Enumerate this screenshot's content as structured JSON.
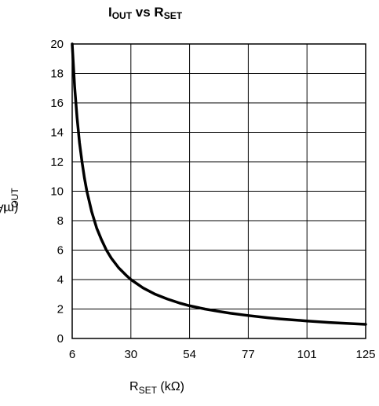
{
  "chart_data": {
    "type": "line",
    "title_main": "I",
    "title_sub1": "OUT",
    "title_mid": " vs R",
    "title_sub2": "SET",
    "ylabel_main": "I",
    "ylabel_sub": "OUT",
    "ylabel_unit": " (mA)",
    "xlabel_main": "R",
    "xlabel_sub": "SET",
    "xlabel_unit": " (kΩ)",
    "x_tick_labels": [
      "6",
      "30",
      "54",
      "77",
      "101",
      "125"
    ],
    "y_ticks": [
      0,
      2,
      4,
      6,
      8,
      10,
      12,
      14,
      16,
      18,
      20
    ],
    "xlim": [
      6,
      125
    ],
    "ylim": [
      0,
      20
    ],
    "grid": true,
    "series": [
      {
        "x": [
          6,
          7,
          8,
          9,
          10,
          11,
          12,
          14,
          16,
          18,
          20,
          22,
          25,
          28,
          30,
          35,
          40,
          45,
          50,
          54,
          60,
          65,
          70,
          77,
          85,
          90,
          101,
          110,
          117,
          125
        ],
        "y": [
          20,
          17.1,
          15.0,
          13.3,
          12.0,
          10.9,
          10.0,
          8.6,
          7.5,
          6.7,
          6.0,
          5.45,
          4.8,
          4.3,
          4.0,
          3.43,
          3.0,
          2.67,
          2.4,
          2.22,
          2.0,
          1.85,
          1.71,
          1.56,
          1.41,
          1.33,
          1.19,
          1.09,
          1.03,
          0.96
        ]
      }
    ]
  }
}
